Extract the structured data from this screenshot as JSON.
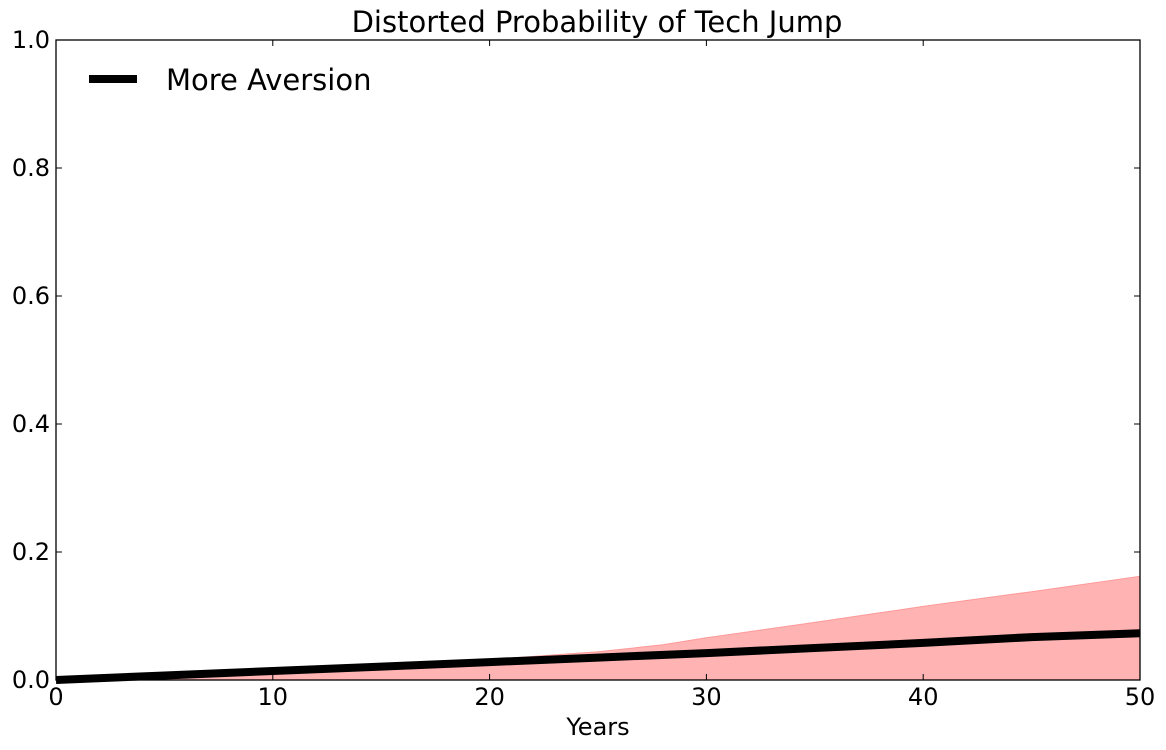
{
  "chart_data": {
    "type": "line",
    "title": "Distorted Probability of Tech Jump",
    "xlabel": "Years",
    "ylabel": "",
    "xlim": [
      0,
      50
    ],
    "ylim": [
      0,
      1.0
    ],
    "x_ticks": [
      "0",
      "10",
      "20",
      "30",
      "40",
      "50"
    ],
    "y_ticks": [
      "0.0",
      "0.2",
      "0.4",
      "0.6",
      "0.8",
      "1.0"
    ],
    "grid": false,
    "legend_position": "top-left",
    "series": [
      {
        "name": "More Aversion",
        "color": "#000000",
        "x": [
          0,
          5,
          10,
          15,
          20,
          25,
          30,
          35,
          40,
          45,
          50
        ],
        "y": [
          0.0,
          0.007,
          0.014,
          0.021,
          0.028,
          0.035,
          0.042,
          0.05,
          0.058,
          0.067,
          0.073
        ]
      }
    ],
    "band": {
      "color": "#ff9999",
      "x": [
        0,
        5,
        10,
        15,
        20,
        25,
        28,
        30,
        35,
        40,
        45,
        50
      ],
      "lower": [
        0,
        0,
        0,
        0,
        0,
        0,
        0,
        0,
        0,
        0,
        0,
        0
      ],
      "upper": [
        0.0,
        0.008,
        0.016,
        0.024,
        0.032,
        0.044,
        0.055,
        0.066,
        0.09,
        0.115,
        0.138,
        0.162
      ]
    }
  }
}
